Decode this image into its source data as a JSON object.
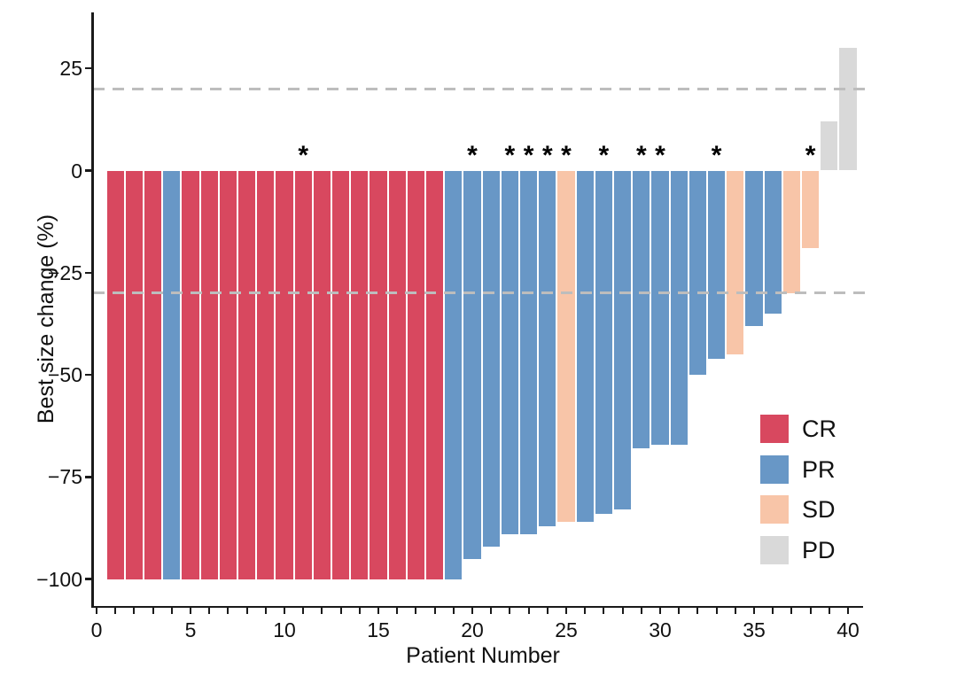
{
  "chart_data": {
    "type": "bar",
    "subtype": "waterfall",
    "title": "",
    "xlabel": "Patient Number",
    "ylabel": "Best size change (%)",
    "ylim": [
      -107,
      38
    ],
    "xlim": [
      0,
      41
    ],
    "grid": false,
    "annotation_symbol": "*",
    "threshold_lines": [
      20,
      -30
    ],
    "x_ticks": [
      {
        "value": 0,
        "label": "0"
      },
      {
        "value": 5,
        "label": "5"
      },
      {
        "value": 10,
        "label": "10"
      },
      {
        "value": 15,
        "label": "15"
      },
      {
        "value": 20,
        "label": "20"
      },
      {
        "value": 25,
        "label": "25"
      },
      {
        "value": 30,
        "label": "30"
      },
      {
        "value": 35,
        "label": "35"
      },
      {
        "value": 40,
        "label": "40"
      }
    ],
    "x_minor_tick_every": 1,
    "y_ticks": [
      {
        "value": 25,
        "label": "25"
      },
      {
        "value": 0,
        "label": "0"
      },
      {
        "value": -25,
        "label": "−25"
      },
      {
        "value": -50,
        "label": "−50"
      },
      {
        "value": -75,
        "label": "−75"
      },
      {
        "value": -100,
        "label": "−100"
      }
    ],
    "legend_position": "inside-right",
    "legend": [
      {
        "label": "CR",
        "color": "#D8485F"
      },
      {
        "label": "PR",
        "color": "#6897C6"
      },
      {
        "label": "SD",
        "color": "#F8C5A8"
      },
      {
        "label": "PD",
        "color": "#D9D9D9"
      }
    ],
    "patients": [
      {
        "patient": 1,
        "response": "CR",
        "value": -100,
        "annotated": false
      },
      {
        "patient": 2,
        "response": "CR",
        "value": -100,
        "annotated": false
      },
      {
        "patient": 3,
        "response": "CR",
        "value": -100,
        "annotated": false
      },
      {
        "patient": 4,
        "response": "PR",
        "value": -100,
        "annotated": false
      },
      {
        "patient": 5,
        "response": "CR",
        "value": -100,
        "annotated": false
      },
      {
        "patient": 6,
        "response": "CR",
        "value": -100,
        "annotated": false
      },
      {
        "patient": 7,
        "response": "CR",
        "value": -100,
        "annotated": false
      },
      {
        "patient": 8,
        "response": "CR",
        "value": -100,
        "annotated": false
      },
      {
        "patient": 9,
        "response": "CR",
        "value": -100,
        "annotated": false
      },
      {
        "patient": 10,
        "response": "CR",
        "value": -100,
        "annotated": false
      },
      {
        "patient": 11,
        "response": "CR",
        "value": -100,
        "annotated": true
      },
      {
        "patient": 12,
        "response": "CR",
        "value": -100,
        "annotated": false
      },
      {
        "patient": 13,
        "response": "CR",
        "value": -100,
        "annotated": false
      },
      {
        "patient": 14,
        "response": "CR",
        "value": -100,
        "annotated": false
      },
      {
        "patient": 15,
        "response": "CR",
        "value": -100,
        "annotated": false
      },
      {
        "patient": 16,
        "response": "CR",
        "value": -100,
        "annotated": false
      },
      {
        "patient": 17,
        "response": "CR",
        "value": -100,
        "annotated": false
      },
      {
        "patient": 18,
        "response": "CR",
        "value": -100,
        "annotated": false
      },
      {
        "patient": 19,
        "response": "PR",
        "value": -100,
        "annotated": false
      },
      {
        "patient": 20,
        "response": "PR",
        "value": -95,
        "annotated": true
      },
      {
        "patient": 21,
        "response": "PR",
        "value": -92,
        "annotated": false
      },
      {
        "patient": 22,
        "response": "PR",
        "value": -89,
        "annotated": true
      },
      {
        "patient": 23,
        "response": "PR",
        "value": -89,
        "annotated": true
      },
      {
        "patient": 24,
        "response": "PR",
        "value": -87,
        "annotated": true
      },
      {
        "patient": 25,
        "response": "SD",
        "value": -86,
        "annotated": true
      },
      {
        "patient": 26,
        "response": "PR",
        "value": -86,
        "annotated": false
      },
      {
        "patient": 27,
        "response": "PR",
        "value": -84,
        "annotated": true
      },
      {
        "patient": 28,
        "response": "PR",
        "value": -83,
        "annotated": false
      },
      {
        "patient": 29,
        "response": "PR",
        "value": -68,
        "annotated": true
      },
      {
        "patient": 30,
        "response": "PR",
        "value": -67,
        "annotated": true
      },
      {
        "patient": 31,
        "response": "PR",
        "value": -67,
        "annotated": false
      },
      {
        "patient": 32,
        "response": "PR",
        "value": -50,
        "annotated": false
      },
      {
        "patient": 33,
        "response": "PR",
        "value": -46,
        "annotated": true
      },
      {
        "patient": 34,
        "response": "SD",
        "value": -45,
        "annotated": false
      },
      {
        "patient": 35,
        "response": "PR",
        "value": -38,
        "annotated": false
      },
      {
        "patient": 36,
        "response": "PR",
        "value": -35,
        "annotated": false
      },
      {
        "patient": 37,
        "response": "SD",
        "value": -30,
        "annotated": false
      },
      {
        "patient": 38,
        "response": "SD",
        "value": -19,
        "annotated": true
      },
      {
        "patient": 39,
        "response": "PD",
        "value": 12,
        "annotated": false
      },
      {
        "patient": 40,
        "response": "PD",
        "value": 30,
        "annotated": false
      }
    ]
  }
}
